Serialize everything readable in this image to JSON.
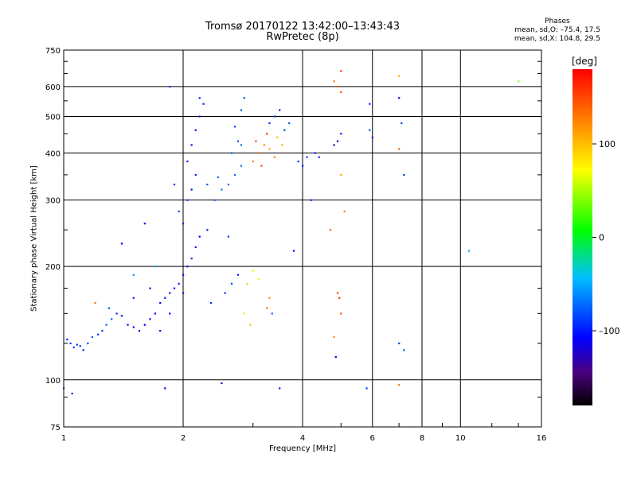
{
  "header": {
    "title_line1": "Tromsø 20170122 13:42:00–13:43:43",
    "title_line2": "RwPretec (8p)",
    "phases_title": "Phases",
    "phases_o": "mean, sd,O: –75.4, 17.5",
    "phases_x": "mean, sd,X: 104.8, 29.5"
  },
  "colorbar": {
    "unit": "[deg]",
    "ticks": [
      "100",
      "0",
      "–100"
    ],
    "tick_values": [
      100,
      0,
      -100
    ],
    "range": [
      -180,
      180
    ]
  },
  "chart_data": {
    "type": "scatter",
    "xlabel": "Frequency [MHz]",
    "ylabel": "Stationary phase Virtual Height [km]",
    "x_scale": "log",
    "y_scale": "log",
    "xlim": [
      1,
      16
    ],
    "ylim": [
      75,
      750
    ],
    "x_ticks": [
      1,
      2,
      4,
      6,
      8,
      10,
      16
    ],
    "x_tick_labels": [
      "1",
      "2",
      "4",
      "6",
      "8",
      "10",
      "16"
    ],
    "y_ticks": [
      75,
      100,
      200,
      300,
      400,
      500,
      600,
      750
    ],
    "y_tick_labels": [
      "75",
      "100",
      "200",
      "300",
      "400",
      "500",
      "600",
      "750"
    ],
    "grid": true,
    "points": [
      [
        1.02,
        128,
        -95
      ],
      [
        1.04,
        125,
        -90
      ],
      [
        1.06,
        122,
        -88
      ],
      [
        1.08,
        124,
        -92
      ],
      [
        1.1,
        123,
        -95
      ],
      [
        1.12,
        120,
        -100
      ],
      [
        1.15,
        125,
        -85
      ],
      [
        1.18,
        130,
        -80
      ],
      [
        1.22,
        132,
        -95
      ],
      [
        1.25,
        135,
        -90
      ],
      [
        1.28,
        140,
        -75
      ],
      [
        1.32,
        145,
        -80
      ],
      [
        1.36,
        150,
        -95
      ],
      [
        1.4,
        148,
        -110
      ],
      [
        1.45,
        140,
        -110
      ],
      [
        1.5,
        138,
        -105
      ],
      [
        1.55,
        135,
        -110
      ],
      [
        1.6,
        140,
        -108
      ],
      [
        1.65,
        145,
        -112
      ],
      [
        1.7,
        150,
        -105
      ],
      [
        1.75,
        160,
        -110
      ],
      [
        1.8,
        165,
        -100
      ],
      [
        1.85,
        170,
        -105
      ],
      [
        1.9,
        175,
        -110
      ],
      [
        1.95,
        180,
        -100
      ],
      [
        2.0,
        190,
        -105
      ],
      [
        2.05,
        200,
        -110
      ],
      [
        2.1,
        210,
        -95
      ],
      [
        2.15,
        225,
        -100
      ],
      [
        2.2,
        240,
        -108
      ],
      [
        2.0,
        260,
        -95
      ],
      [
        1.95,
        280,
        -90
      ],
      [
        2.05,
        300,
        -92
      ],
      [
        2.1,
        320,
        -105
      ],
      [
        2.15,
        350,
        -98
      ],
      [
        2.05,
        380,
        -100
      ],
      [
        2.1,
        420,
        -105
      ],
      [
        2.15,
        460,
        -110
      ],
      [
        2.2,
        500,
        -95
      ],
      [
        2.25,
        540,
        -100
      ],
      [
        2.4,
        300,
        -75
      ],
      [
        2.5,
        320,
        -70
      ],
      [
        2.6,
        330,
        -72
      ],
      [
        2.7,
        350,
        -70
      ],
      [
        2.8,
        370,
        -68
      ],
      [
        2.65,
        400,
        -75
      ],
      [
        2.75,
        430,
        -80
      ],
      [
        2.7,
        470,
        -85
      ],
      [
        2.8,
        520,
        -80
      ],
      [
        2.85,
        560,
        -85
      ],
      [
        3.0,
        380,
        130
      ],
      [
        3.1,
        400,
        140
      ],
      [
        3.2,
        420,
        120
      ],
      [
        3.3,
        410,
        110
      ],
      [
        3.4,
        390,
        125
      ],
      [
        3.05,
        430,
        150
      ],
      [
        3.25,
        450,
        160
      ],
      [
        3.45,
        440,
        100
      ],
      [
        3.55,
        420,
        105
      ],
      [
        3.15,
        370,
        145
      ],
      [
        3.6,
        460,
        -85
      ],
      [
        3.4,
        500,
        -90
      ],
      [
        3.3,
        480,
        -95
      ],
      [
        3.5,
        520,
        -100
      ],
      [
        3.7,
        480,
        -80
      ],
      [
        3.9,
        380,
        -90
      ],
      [
        4.1,
        390,
        -85
      ],
      [
        4.3,
        400,
        -100
      ],
      [
        4.4,
        390,
        -95
      ],
      [
        4.0,
        370,
        -100
      ],
      [
        2.9,
        180,
        90
      ],
      [
        3.0,
        195,
        80
      ],
      [
        2.85,
        150,
        80
      ],
      [
        2.95,
        140,
        100
      ],
      [
        3.1,
        185,
        60
      ],
      [
        3.25,
        155,
        130
      ],
      [
        3.3,
        165,
        120
      ],
      [
        3.35,
        150,
        -70
      ],
      [
        4.8,
        620,
        130
      ],
      [
        4.9,
        600,
        140
      ],
      [
        5.0,
        660,
        160
      ],
      [
        5.0,
        580,
        150
      ],
      [
        4.8,
        420,
        -140
      ],
      [
        4.9,
        430,
        -130
      ],
      [
        5.0,
        450,
        -100
      ],
      [
        5.0,
        350,
        110
      ],
      [
        5.1,
        280,
        130
      ],
      [
        4.7,
        250,
        140
      ],
      [
        4.9,
        170,
        150
      ],
      [
        4.95,
        165,
        160
      ],
      [
        5.0,
        150,
        140
      ],
      [
        4.8,
        130,
        120
      ],
      [
        4.85,
        115,
        -110
      ],
      [
        5.9,
        540,
        -90
      ],
      [
        5.9,
        460,
        -80
      ],
      [
        6.0,
        440,
        -100
      ],
      [
        5.8,
        95,
        -90
      ],
      [
        7.0,
        640,
        110
      ],
      [
        7.0,
        560,
        -110
      ],
      [
        7.1,
        480,
        -85
      ],
      [
        7.0,
        410,
        140
      ],
      [
        7.2,
        350,
        -90
      ],
      [
        7.0,
        125,
        -85
      ],
      [
        7.2,
        120,
        -80
      ],
      [
        7.0,
        97,
        130
      ],
      [
        10.5,
        220,
        -50
      ],
      [
        14.0,
        620,
        40
      ],
      [
        1.0,
        95,
        -80
      ],
      [
        1.05,
        92,
        -95
      ],
      [
        1.8,
        95,
        -110
      ],
      [
        2.5,
        98,
        -120
      ],
      [
        3.5,
        95,
        -100
      ],
      [
        1.85,
        600,
        -90
      ],
      [
        2.8,
        420,
        -70
      ],
      [
        1.2,
        160,
        130
      ],
      [
        1.5,
        190,
        -60
      ],
      [
        1.7,
        200,
        -50
      ],
      [
        3.8,
        220,
        -110
      ],
      [
        4.2,
        300,
        -95
      ],
      [
        2.3,
        330,
        -80
      ],
      [
        2.45,
        345,
        -70
      ],
      [
        1.6,
        260,
        -105
      ],
      [
        1.4,
        230,
        -110
      ],
      [
        1.9,
        330,
        -100
      ],
      [
        2.3,
        250,
        -95
      ],
      [
        2.6,
        240,
        -90
      ],
      [
        2.2,
        560,
        -95
      ],
      [
        1.3,
        155,
        -80
      ],
      [
        1.5,
        165,
        -95
      ],
      [
        1.75,
        135,
        -110
      ],
      [
        1.85,
        150,
        -105
      ],
      [
        2.35,
        160,
        -95
      ],
      [
        2.55,
        170,
        -90
      ],
      [
        2.65,
        180,
        -85
      ],
      [
        2.75,
        190,
        -95
      ],
      [
        1.65,
        175,
        -110
      ],
      [
        2.0,
        170,
        -100
      ]
    ]
  }
}
